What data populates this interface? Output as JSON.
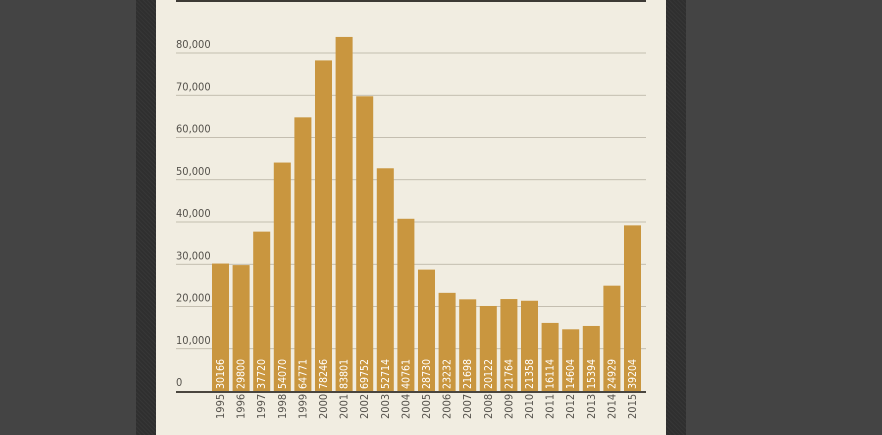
{
  "colors": {
    "bar": "#c9963f",
    "background": "#f1ede1",
    "gridline": "#b5ae9f",
    "axis": "#4a463f",
    "text": "#55524c",
    "outer": "#444444"
  },
  "chart_data": {
    "type": "bar",
    "title": "",
    "xlabel": "",
    "ylabel": "",
    "ylim": [
      0,
      85000
    ],
    "yticks": [
      0,
      10000,
      20000,
      30000,
      40000,
      50000,
      60000,
      70000,
      80000
    ],
    "ytick_labels": [
      "0",
      "10,000",
      "20,000",
      "30,000",
      "40,000",
      "50,000",
      "60,000",
      "70,000",
      "80,000"
    ],
    "grid": true,
    "legend": "none",
    "categories": [
      "1995",
      "1996",
      "1997",
      "1998",
      "1999",
      "2000",
      "2001",
      "2002",
      "2003",
      "2004",
      "2005",
      "2006",
      "2007",
      "2008",
      "2009",
      "2010",
      "2011",
      "2012",
      "2013",
      "2014",
      "2015"
    ],
    "values": [
      30166,
      29800,
      37720,
      54070,
      64771,
      78246,
      83801,
      69752,
      52714,
      40761,
      28730,
      23232,
      21698,
      20122,
      21764,
      21358,
      16114,
      14604,
      15394,
      24929,
      39204
    ],
    "data_labels": [
      "30166",
      "29800",
      "37720",
      "54070",
      "64771",
      "78246",
      "83801",
      "69752",
      "52714",
      "40761",
      "28730",
      "23232",
      "21698",
      "20122",
      "21764",
      "21358",
      "16114",
      "14604",
      "15394",
      "24929",
      "39204"
    ]
  }
}
